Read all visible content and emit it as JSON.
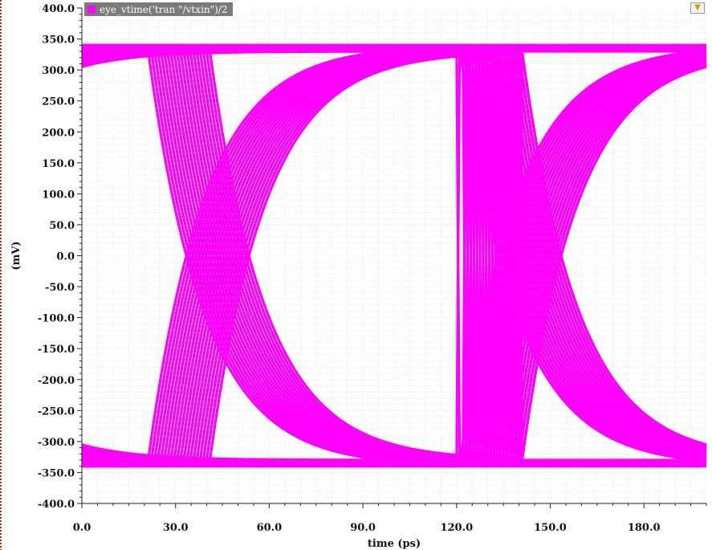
{
  "legend": {
    "label": "eye_vtime('tran \"/vtxin\")/2",
    "color": "#ff00ff",
    "swatch_icon": "legend-swatch-icon"
  },
  "toolbar": {
    "filter_icon": "filter-icon"
  },
  "chart_data": {
    "type": "line",
    "title": "",
    "xlabel": "time (ps)",
    "ylabel": "(mV)",
    "xlim": [
      0,
      200
    ],
    "ylim": [
      -400,
      400
    ],
    "grid": true,
    "x_ticks": [
      "0.0",
      "30.0",
      "60.0",
      "90.0",
      "120.0",
      "150.0",
      "180.0"
    ],
    "x_tick_values": [
      0,
      30,
      60,
      90,
      120,
      150,
      180
    ],
    "y_ticks": [
      "400.0",
      "350.0",
      "300.0",
      "250.0",
      "200.0",
      "150.0",
      "100.0",
      "50.0",
      "0.0",
      "-50.0",
      "-100.0",
      "-150.0",
      "-200.0",
      "-250.0",
      "-300.0",
      "-350.0",
      "-400.0"
    ],
    "y_tick_values": [
      400,
      350,
      300,
      250,
      200,
      150,
      100,
      50,
      0,
      -50,
      -100,
      -150,
      -200,
      -250,
      -300,
      -350,
      -400
    ],
    "series": [
      {
        "name": "eye_vtime('tran \"/vtxin\")/2",
        "color": "#ff00ff",
        "unit_interval_ps": 100,
        "crossing_times_ps": [
          40,
          60,
          140,
          160
        ],
        "high_level_mv": [
          330,
          340
        ],
        "low_level_mv": [
          -340,
          -330
        ],
        "eye_crossing_mv": 0
      }
    ]
  }
}
